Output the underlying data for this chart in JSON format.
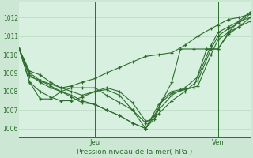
{
  "bg_color": "#cce8d4",
  "plot_bg_color": "#d8f0e0",
  "grid_color": "#b8d8c0",
  "line_color": "#2d6e2d",
  "marker_color": "#2d6e2d",
  "xlabel": "Pression niveau de la mer( hPa )",
  "ylim": [
    1005.5,
    1012.8
  ],
  "yticks": [
    1006,
    1007,
    1008,
    1009,
    1010,
    1011,
    1012
  ],
  "jeu_x": 87,
  "ven_x": 228,
  "xlim": [
    0,
    265
  ],
  "series": [
    [
      [
        0,
        1010.3
      ],
      [
        12,
        1009.1
      ],
      [
        24,
        1008.9
      ],
      [
        36,
        1008.5
      ],
      [
        48,
        1008.2
      ],
      [
        60,
        1008.3
      ],
      [
        72,
        1008.5
      ],
      [
        87,
        1008.7
      ],
      [
        100,
        1009.0
      ],
      [
        115,
        1009.3
      ],
      [
        130,
        1009.6
      ],
      [
        145,
        1009.9
      ],
      [
        160,
        1010.0
      ],
      [
        175,
        1010.1
      ],
      [
        190,
        1010.5
      ],
      [
        205,
        1011.0
      ],
      [
        220,
        1011.4
      ],
      [
        228,
        1011.6
      ],
      [
        240,
        1011.9
      ],
      [
        252,
        1012.0
      ],
      [
        265,
        1012.2
      ]
    ],
    [
      [
        0,
        1010.3
      ],
      [
        12,
        1009.0
      ],
      [
        24,
        1008.6
      ],
      [
        36,
        1008.3
      ],
      [
        48,
        1008.0
      ],
      [
        60,
        1007.8
      ],
      [
        72,
        1007.5
      ],
      [
        87,
        1007.3
      ],
      [
        100,
        1007.0
      ],
      [
        115,
        1006.7
      ],
      [
        130,
        1006.3
      ],
      [
        145,
        1006.0
      ],
      [
        160,
        1007.0
      ],
      [
        175,
        1007.8
      ],
      [
        190,
        1008.2
      ],
      [
        205,
        1008.8
      ],
      [
        220,
        1010.5
      ],
      [
        228,
        1011.2
      ],
      [
        240,
        1011.5
      ],
      [
        252,
        1011.8
      ],
      [
        265,
        1012.3
      ]
    ],
    [
      [
        0,
        1010.3
      ],
      [
        12,
        1008.9
      ],
      [
        24,
        1008.5
      ],
      [
        36,
        1008.2
      ],
      [
        48,
        1008.0
      ],
      [
        60,
        1007.7
      ],
      [
        72,
        1007.4
      ],
      [
        87,
        1007.3
      ],
      [
        100,
        1007.0
      ],
      [
        115,
        1006.7
      ],
      [
        130,
        1006.3
      ],
      [
        145,
        1006.0
      ],
      [
        160,
        1006.8
      ],
      [
        175,
        1007.5
      ],
      [
        190,
        1008.0
      ],
      [
        205,
        1008.6
      ],
      [
        220,
        1010.3
      ],
      [
        228,
        1011.0
      ],
      [
        240,
        1011.4
      ],
      [
        252,
        1011.7
      ],
      [
        265,
        1012.2
      ]
    ],
    [
      [
        0,
        1010.3
      ],
      [
        12,
        1008.8
      ],
      [
        24,
        1008.6
      ],
      [
        36,
        1008.4
      ],
      [
        48,
        1008.2
      ],
      [
        60,
        1008.0
      ],
      [
        72,
        1007.8
      ],
      [
        87,
        1008.0
      ],
      [
        100,
        1008.1
      ],
      [
        115,
        1007.8
      ],
      [
        130,
        1007.0
      ],
      [
        145,
        1006.0
      ],
      [
        160,
        1007.3
      ],
      [
        175,
        1007.9
      ],
      [
        190,
        1008.1
      ],
      [
        205,
        1008.3
      ],
      [
        220,
        1010.0
      ],
      [
        228,
        1010.8
      ],
      [
        240,
        1011.2
      ],
      [
        252,
        1011.5
      ],
      [
        265,
        1011.8
      ]
    ],
    [
      [
        0,
        1010.3
      ],
      [
        12,
        1008.5
      ],
      [
        24,
        1008.0
      ],
      [
        36,
        1007.7
      ],
      [
        48,
        1007.5
      ],
      [
        60,
        1007.5
      ],
      [
        72,
        1007.7
      ],
      [
        87,
        1008.0
      ],
      [
        100,
        1008.2
      ],
      [
        115,
        1008.0
      ],
      [
        130,
        1007.4
      ],
      [
        145,
        1006.4
      ],
      [
        155,
        1006.5
      ],
      [
        165,
        1007.6
      ],
      [
        175,
        1008.0
      ],
      [
        185,
        1008.1
      ],
      [
        200,
        1008.2
      ],
      [
        215,
        1010.3
      ],
      [
        228,
        1010.3
      ],
      [
        240,
        1011.1
      ],
      [
        252,
        1011.5
      ],
      [
        265,
        1012.0
      ]
    ],
    [
      [
        0,
        1010.3
      ],
      [
        12,
        1008.5
      ],
      [
        24,
        1007.6
      ],
      [
        36,
        1007.6
      ],
      [
        48,
        1008.0
      ],
      [
        60,
        1008.2
      ],
      [
        72,
        1008.2
      ],
      [
        87,
        1008.2
      ],
      [
        100,
        1007.8
      ],
      [
        115,
        1007.4
      ],
      [
        130,
        1007.0
      ],
      [
        145,
        1006.3
      ],
      [
        155,
        1006.7
      ],
      [
        165,
        1007.6
      ],
      [
        175,
        1008.5
      ],
      [
        185,
        1010.3
      ],
      [
        200,
        1010.3
      ],
      [
        215,
        1010.3
      ],
      [
        228,
        1010.3
      ],
      [
        240,
        1011.2
      ],
      [
        252,
        1011.8
      ],
      [
        265,
        1012.0
      ]
    ]
  ]
}
